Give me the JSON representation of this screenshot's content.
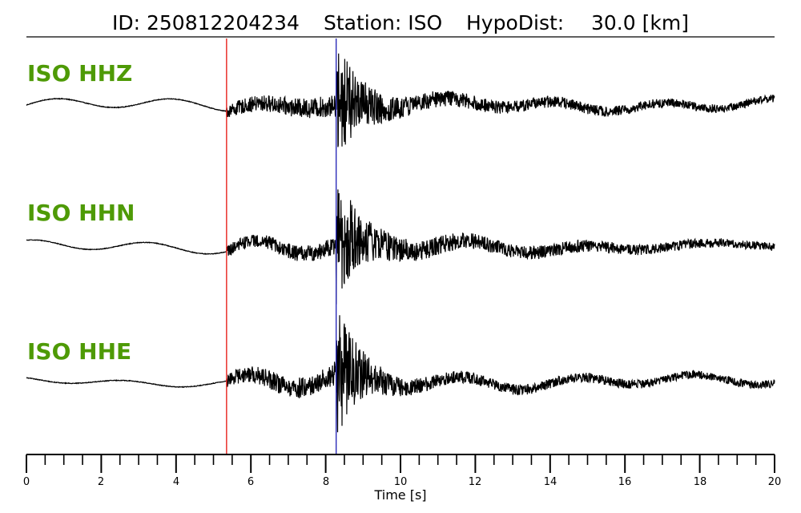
{
  "title": {
    "id_part": "ID: 250812204234",
    "station_part": "Station: ISO",
    "hypo_part": "HypoDist:",
    "hypo_value": "30.0 [km]"
  },
  "colors": {
    "label": "#4e9a06",
    "p_pick": "#e8231e",
    "s_pick": "#2b2bb8",
    "trace": "#000000"
  },
  "chart_data": {
    "type": "line",
    "xlabel": "Time [s]",
    "xlim": [
      0,
      20
    ],
    "major_ticks": [
      0,
      2,
      4,
      6,
      8,
      10,
      12,
      14,
      16,
      18,
      20
    ],
    "minor_tick_step": 0.5,
    "tick_labels": [
      "0",
      "2",
      "4",
      "6",
      "8",
      "10",
      "12",
      "14",
      "16",
      "18",
      "20"
    ],
    "p_pick_time": 5.35,
    "s_pick_time": 8.28,
    "series": [
      {
        "name": "ISO HHZ",
        "noise_amp": 0.1,
        "p_amp": 0.22,
        "s_amp": 0.95,
        "wave_amp": 0.16
      },
      {
        "name": "ISO HHN",
        "noise_amp": 0.12,
        "p_amp": 0.18,
        "s_amp": 0.95,
        "wave_amp": 0.15
      },
      {
        "name": "ISO HHE",
        "noise_amp": 0.06,
        "p_amp": 0.22,
        "s_amp": 1.0,
        "wave_amp": 0.08
      }
    ]
  }
}
